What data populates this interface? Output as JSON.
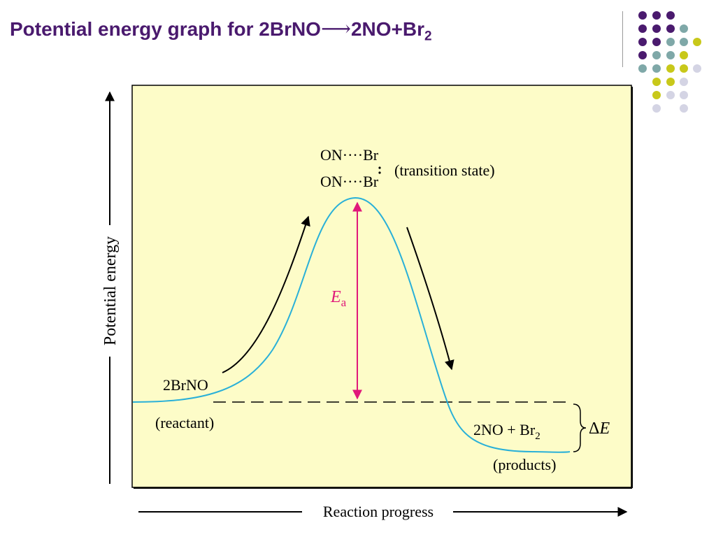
{
  "title": {
    "prefix": "Potential energy graph for 2BrNO",
    "arrow": "⟶",
    "middle": "2NO+Br",
    "subscript": "2"
  },
  "diagram": {
    "transition_line1": "ON····Br",
    "transition_line2": "ON····Br",
    "transition_label": "(transition state)",
    "reactant_formula": "2BrNO",
    "reactant_label": "(reactant)",
    "products_formula": "2NO + Br",
    "products_subscript": "2",
    "products_label": "(products)",
    "activation_symbol": "E",
    "activation_subscript": "a",
    "delta_e_symbol": "Δ",
    "delta_e_letter": "E",
    "y_axis_label": "Potential energy",
    "x_axis_label": "Reaction progress"
  },
  "colors": {
    "title": "#4a1a6e",
    "panel_fill": "#fdfcc8",
    "curve": "#29b0d8",
    "activation_arrow": "#e0187a",
    "dot_purple": "#4a1a6e",
    "dot_teal": "#7fa8a8",
    "dot_yellow": "#c8c81a",
    "dot_lavender": "#d4d4e4"
  }
}
